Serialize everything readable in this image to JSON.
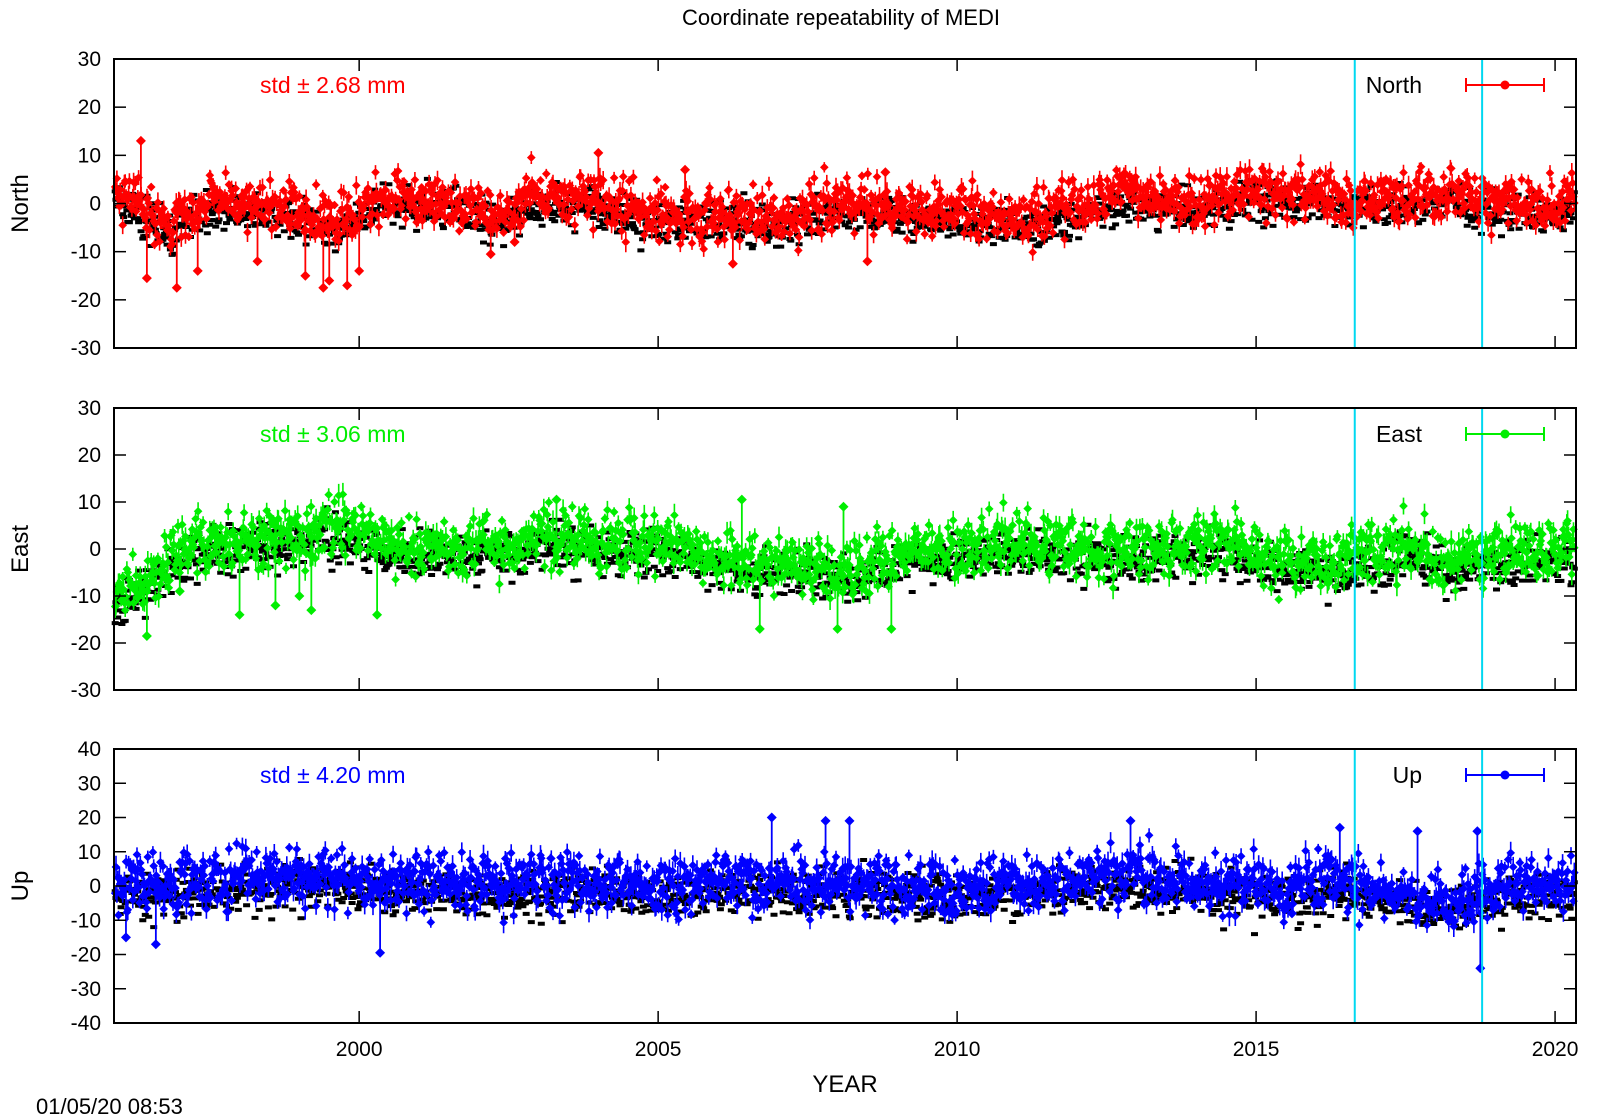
{
  "chart_data": {
    "type": "scatter",
    "title": "Coordinate repeatability of MEDI",
    "xlabel": "YEAR",
    "xlim": [
      1995.9,
      2020.35
    ],
    "x_ticks": [
      "2000",
      "2005",
      "2010",
      "2015",
      "2020"
    ],
    "x_tick_values": [
      2000,
      2005,
      2010,
      2015,
      2020
    ],
    "timestamp": "01/05/20 08:53",
    "vertical_markers": {
      "color": "#00d8f0",
      "x": [
        2016.65,
        2018.78
      ]
    },
    "background_series_color": "#000000",
    "panels": [
      {
        "ylabel": "North",
        "ylim": [
          -30,
          30
        ],
        "y_ticks": [
          "30",
          "20",
          "10",
          "0",
          "-10",
          "-20",
          "-30"
        ],
        "y_tick_values": [
          30,
          20,
          10,
          0,
          -10,
          -20,
          -30
        ],
        "std_text": "std ± 2.68 mm",
        "legend": "North",
        "color": "#ff0000",
        "amplitude": 2.68,
        "envelope": [
          [
            1995.9,
            4.0
          ],
          [
            1996.8,
            -4.5
          ],
          [
            1997.5,
            0.5
          ],
          [
            1998.7,
            -1.0
          ],
          [
            1999.6,
            -4.0
          ],
          [
            2000.5,
            2.0
          ],
          [
            2001.5,
            1.0
          ],
          [
            2002.3,
            -3.0
          ],
          [
            2002.9,
            2.0
          ],
          [
            2003.8,
            1.0
          ],
          [
            2005.0,
            -2.0
          ],
          [
            2006.0,
            -2.0
          ],
          [
            2007.0,
            -3.0
          ],
          [
            2008.0,
            0.0
          ],
          [
            2009.5,
            -1.0
          ],
          [
            2010.6,
            -3.0
          ],
          [
            2011.5,
            -2.0
          ],
          [
            2012.8,
            2.0
          ],
          [
            2013.8,
            0.0
          ],
          [
            2015.0,
            3.0
          ],
          [
            2016.5,
            1.0
          ],
          [
            2017.5,
            1.0
          ],
          [
            2018.2,
            2.0
          ],
          [
            2019.0,
            0.0
          ],
          [
            2020.35,
            0.0
          ]
        ],
        "outliers": [
          [
            1996.35,
            13
          ],
          [
            1996.45,
            -15.5
          ],
          [
            1996.95,
            -17.5
          ],
          [
            1997.3,
            -14
          ],
          [
            1998.3,
            -12
          ],
          [
            1999.1,
            -15
          ],
          [
            1999.4,
            -17.5
          ],
          [
            1999.5,
            -16
          ],
          [
            1999.8,
            -17
          ],
          [
            2000.0,
            -14
          ],
          [
            2002.2,
            -10.5
          ],
          [
            2002.6,
            -8
          ],
          [
            2004.0,
            10.5
          ],
          [
            2005.45,
            7
          ],
          [
            2006.25,
            -12.5
          ],
          [
            2008.5,
            -12
          ],
          [
            2008.8,
            6.5
          ]
        ]
      },
      {
        "ylabel": "East",
        "ylim": [
          -30,
          30
        ],
        "y_ticks": [
          "30",
          "20",
          "10",
          "0",
          "-10",
          "-20",
          "-30"
        ],
        "y_tick_values": [
          30,
          20,
          10,
          0,
          -10,
          -20,
          -30
        ],
        "std_text": "std ± 3.06 mm",
        "legend": "East",
        "color": "#00ee00",
        "amplitude": 3.06,
        "envelope": [
          [
            1995.9,
            -10.0
          ],
          [
            1996.5,
            -6.0
          ],
          [
            1997.2,
            1.0
          ],
          [
            1998.5,
            1.5
          ],
          [
            1999.5,
            5.0
          ],
          [
            2000.5,
            1.0
          ],
          [
            2001.5,
            0.0
          ],
          [
            2002.6,
            1.0
          ],
          [
            2003.1,
            3.0
          ],
          [
            2004.0,
            1.5
          ],
          [
            2005.0,
            1.5
          ],
          [
            2006.3,
            -2.5
          ],
          [
            2007.0,
            -3.0
          ],
          [
            2008.2,
            -4.5
          ],
          [
            2009.2,
            -1.0
          ],
          [
            2010.0,
            0.0
          ],
          [
            2011.0,
            2.0
          ],
          [
            2012.0,
            0.0
          ],
          [
            2013.5,
            0.0
          ],
          [
            2014.5,
            1.5
          ],
          [
            2015.5,
            -3.0
          ],
          [
            2016.7,
            -2.0
          ],
          [
            2017.5,
            1.0
          ],
          [
            2018.3,
            -2.5
          ],
          [
            2019.3,
            -1.0
          ],
          [
            2020.35,
            0.5
          ]
        ],
        "outliers": [
          [
            1996.45,
            -18.5
          ],
          [
            1997.0,
            -9
          ],
          [
            1998.0,
            -14
          ],
          [
            1998.6,
            -12
          ],
          [
            1999.0,
            -10
          ],
          [
            1999.2,
            -13
          ],
          [
            2000.3,
            -14
          ],
          [
            2003.3,
            10.5
          ],
          [
            2006.4,
            10.5
          ],
          [
            2006.7,
            -17
          ],
          [
            2008.0,
            -17
          ],
          [
            2008.1,
            9
          ],
          [
            2008.9,
            -17
          ]
        ]
      },
      {
        "ylabel": "Up",
        "ylim": [
          -40,
          40
        ],
        "y_ticks": [
          "40",
          "30",
          "20",
          "10",
          "0",
          "-10",
          "-20",
          "-30",
          "-40"
        ],
        "y_tick_values": [
          40,
          30,
          20,
          10,
          0,
          -10,
          -20,
          -30,
          -40
        ],
        "std_text": "std ± 4.20 mm",
        "legend": "Up",
        "color": "#0000ff",
        "amplitude": 4.2,
        "envelope": [
          [
            1995.9,
            0.0
          ],
          [
            1998.0,
            2.0
          ],
          [
            1999.5,
            3.0
          ],
          [
            2001.0,
            1.0
          ],
          [
            2002.5,
            0.0
          ],
          [
            2003.5,
            2.0
          ],
          [
            2005.0,
            0.0
          ],
          [
            2006.5,
            2.0
          ],
          [
            2007.5,
            1.0
          ],
          [
            2008.5,
            1.0
          ],
          [
            2009.5,
            -1.0
          ],
          [
            2011.0,
            0.0
          ],
          [
            2012.5,
            3.0
          ],
          [
            2014.0,
            1.0
          ],
          [
            2015.5,
            -1.0
          ],
          [
            2016.5,
            1.0
          ],
          [
            2017.6,
            -3.0
          ],
          [
            2018.2,
            -6.0
          ],
          [
            2018.9,
            -1.0
          ],
          [
            2020.35,
            1.0
          ]
        ],
        "outliers": [
          [
            1996.1,
            -15
          ],
          [
            1996.6,
            -17
          ],
          [
            2000.35,
            -19.5
          ],
          [
            2006.9,
            20
          ],
          [
            2007.8,
            19
          ],
          [
            2008.2,
            19
          ],
          [
            2012.9,
            19
          ],
          [
            2015.6,
            -8
          ],
          [
            2016.4,
            17
          ],
          [
            2017.7,
            16
          ],
          [
            2018.75,
            -24
          ],
          [
            2018.7,
            16
          ]
        ]
      }
    ]
  }
}
